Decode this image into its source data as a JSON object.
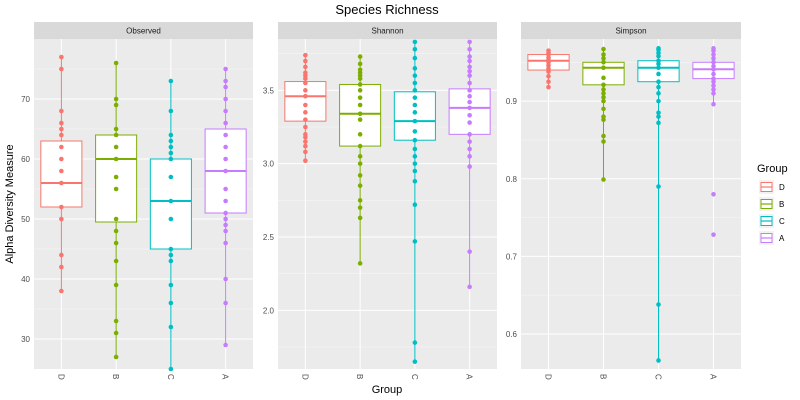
{
  "chart_data": {
    "type": "box",
    "title": "Species Richness",
    "xlabel": "Group",
    "ylabel": "Alpha Diversity Measure",
    "categories": [
      "D",
      "B",
      "C",
      "A"
    ],
    "legend": {
      "title": "Group",
      "placement": "right",
      "entries": [
        "D",
        "B",
        "C",
        "A"
      ]
    },
    "colors": {
      "D": "#F8766D",
      "B": "#7CAE00",
      "C": "#00BFC4",
      "A": "#C77CFF"
    },
    "panels": [
      {
        "name": "Observed",
        "ylim": [
          25,
          80
        ],
        "yticks": [
          30,
          40,
          50,
          60,
          70
        ],
        "ytick_labels": [
          "30",
          "40",
          "50",
          "60",
          "70"
        ],
        "boxes": [
          {
            "group": "D",
            "min": 38,
            "q1": 52,
            "median": 56,
            "q3": 63,
            "max": 77,
            "points": [
              38,
              42,
              44,
              50,
              52,
              56,
              58,
              60,
              62,
              64,
              65,
              66,
              68,
              75,
              77
            ]
          },
          {
            "group": "B",
            "min": 27,
            "q1": 49.5,
            "median": 60,
            "q3": 64,
            "max": 76,
            "points": [
              27,
              31,
              33,
              39,
              43,
              46,
              48,
              50,
              55,
              57,
              60,
              62,
              64,
              65,
              69,
              70,
              76
            ]
          },
          {
            "group": "C",
            "min": 25,
            "q1": 45,
            "median": 53,
            "q3": 60,
            "max": 73,
            "points": [
              25,
              32,
              36,
              39,
              43,
              44,
              45,
              50,
              53,
              57,
              60,
              61,
              62,
              63,
              64,
              68,
              73
            ]
          },
          {
            "group": "A",
            "min": 29,
            "q1": 51,
            "median": 58,
            "q3": 65,
            "max": 75,
            "points": [
              29,
              36,
              40,
              46,
              48,
              49,
              50,
              51,
              53,
              55,
              58,
              60,
              62,
              64,
              66,
              68,
              70,
              72,
              73,
              75
            ]
          }
        ]
      },
      {
        "name": "Shannon",
        "ylim": [
          1.6,
          3.85
        ],
        "yticks": [
          2.0,
          2.5,
          3.0,
          3.5
        ],
        "ytick_labels": [
          "2.0",
          "2.5",
          "3.0",
          "3.5"
        ],
        "boxes": [
          {
            "group": "D",
            "min": 3.02,
            "q1": 3.29,
            "median": 3.46,
            "q3": 3.56,
            "max": 3.74,
            "points": [
              3.02,
              3.08,
              3.12,
              3.15,
              3.18,
              3.2,
              3.25,
              3.3,
              3.35,
              3.4,
              3.46,
              3.5,
              3.55,
              3.58,
              3.6,
              3.62,
              3.66,
              3.7,
              3.74
            ]
          },
          {
            "group": "B",
            "min": 2.32,
            "q1": 3.12,
            "median": 3.34,
            "q3": 3.54,
            "max": 3.73,
            "points": [
              2.32,
              2.63,
              2.7,
              2.75,
              2.85,
              2.92,
              3.0,
              3.05,
              3.12,
              3.2,
              3.3,
              3.34,
              3.4,
              3.45,
              3.5,
              3.54,
              3.58,
              3.6,
              3.62,
              3.64,
              3.68,
              3.73
            ]
          },
          {
            "group": "C",
            "min": 1.65,
            "q1": 3.16,
            "median": 3.29,
            "q3": 3.49,
            "max": 3.83,
            "points": [
              1.65,
              1.78,
              2.47,
              2.72,
              2.88,
              2.95,
              3.0,
              3.05,
              3.1,
              3.16,
              3.22,
              3.29,
              3.35,
              3.4,
              3.45,
              3.5,
              3.55,
              3.6,
              3.65,
              3.72,
              3.78,
              3.83
            ]
          },
          {
            "group": "A",
            "min": 2.16,
            "q1": 3.2,
            "median": 3.38,
            "q3": 3.51,
            "max": 3.83,
            "points": [
              2.16,
              2.4,
              2.98,
              3.05,
              3.1,
              3.15,
              3.2,
              3.28,
              3.33,
              3.38,
              3.42,
              3.46,
              3.5,
              3.55,
              3.6,
              3.63,
              3.66,
              3.7,
              3.73,
              3.78,
              3.83
            ]
          }
        ]
      },
      {
        "name": "Simpson",
        "ylim": [
          0.555,
          0.98
        ],
        "yticks": [
          0.6,
          0.7,
          0.8,
          0.9
        ],
        "ytick_labels": [
          "0.6",
          "0.7",
          "0.8",
          "0.9"
        ],
        "boxes": [
          {
            "group": "D",
            "min": 0.918,
            "q1": 0.94,
            "median": 0.952,
            "q3": 0.96,
            "max": 0.965,
            "points": [
              0.918,
              0.925,
              0.932,
              0.938,
              0.942,
              0.946,
              0.95,
              0.953,
              0.956,
              0.96,
              0.962,
              0.965
            ]
          },
          {
            "group": "B",
            "min": 0.799,
            "q1": 0.921,
            "median": 0.943,
            "q3": 0.95,
            "max": 0.967,
            "points": [
              0.799,
              0.848,
              0.855,
              0.876,
              0.88,
              0.89,
              0.9,
              0.905,
              0.91,
              0.915,
              0.921,
              0.93,
              0.943,
              0.95,
              0.955,
              0.96,
              0.967
            ]
          },
          {
            "group": "C",
            "min": 0.566,
            "q1": 0.925,
            "median": 0.943,
            "q3": 0.952,
            "max": 0.968,
            "points": [
              0.566,
              0.638,
              0.79,
              0.872,
              0.88,
              0.885,
              0.9,
              0.91,
              0.918,
              0.925,
              0.935,
              0.943,
              0.948,
              0.952,
              0.958,
              0.962,
              0.966,
              0.968
            ]
          },
          {
            "group": "A",
            "min": 0.896,
            "q1": 0.929,
            "median": 0.941,
            "q3": 0.95,
            "max": 0.968,
            "points": [
              0.728,
              0.78,
              0.896,
              0.91,
              0.915,
              0.92,
              0.925,
              0.929,
              0.935,
              0.941,
              0.945,
              0.95,
              0.955,
              0.96,
              0.965,
              0.968
            ]
          }
        ]
      }
    ]
  }
}
